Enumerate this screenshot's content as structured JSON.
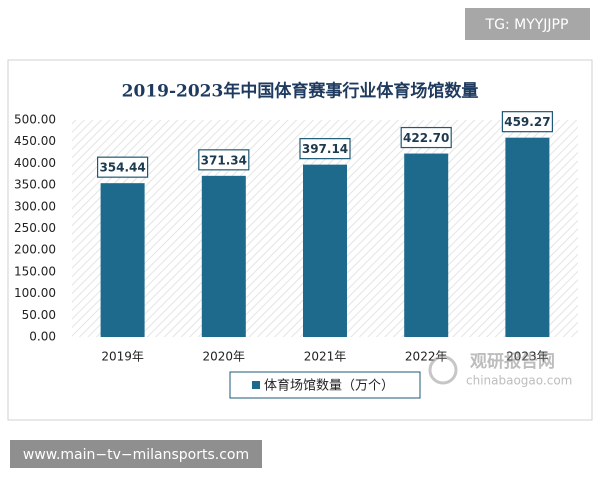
{
  "chart_data": {
    "type": "bar",
    "title": "2019-2023年中国体育赛事行业体育场馆数量",
    "categories": [
      "2019年",
      "2020年",
      "2021年",
      "2022年",
      "2023年"
    ],
    "series": [
      {
        "name": "体育场馆数量（万个）",
        "color": "#1d6a8c",
        "values": [
          354.44,
          371.34,
          397.14,
          422.7,
          459.27
        ],
        "value_labels": [
          "354.44",
          "371.34",
          "397.14",
          "422.70",
          "459.27"
        ]
      }
    ],
    "ylim": [
      0,
      500
    ],
    "yticks": [
      {
        "value": 0,
        "label": "0.00"
      },
      {
        "value": 50,
        "label": "50.00"
      },
      {
        "value": 100,
        "label": "100.00"
      },
      {
        "value": 150,
        "label": "150.00"
      },
      {
        "value": 200,
        "label": "200.00"
      },
      {
        "value": 250,
        "label": "250.00"
      },
      {
        "value": 300,
        "label": "300.00"
      },
      {
        "value": 350,
        "label": "350.00"
      },
      {
        "value": 400,
        "label": "400.00"
      },
      {
        "value": 450,
        "label": "450.00"
      },
      {
        "value": 500,
        "label": "500.00"
      }
    ],
    "legend": "bottom"
  },
  "overlays": {
    "tag": "TG: MYYJJPP",
    "site": "www.main−tv−milansports.com",
    "watermark_name": "观研报告网",
    "watermark_url": "chinabaogao.com"
  }
}
